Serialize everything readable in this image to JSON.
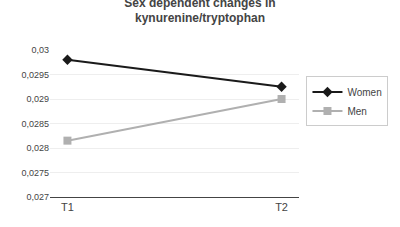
{
  "chart_data": {
    "type": "line",
    "title": "Sex dependent changes in\nkynurenine/tryptophan",
    "categories": [
      "T1",
      "T2"
    ],
    "series": [
      {
        "name": "Women",
        "color": "#1a1a1a",
        "marker": "diamond",
        "values": [
          0.0298,
          0.02925
        ]
      },
      {
        "name": "Men",
        "color": "#b0b0b0",
        "marker": "square",
        "values": [
          0.02815,
          0.029
        ]
      }
    ],
    "ylim": [
      0.027,
      0.03
    ],
    "yticks": [
      {
        "value": 0.027,
        "label": "0,027"
      },
      {
        "value": 0.0275,
        "label": "0,0275"
      },
      {
        "value": 0.028,
        "label": "0,028"
      },
      {
        "value": 0.0285,
        "label": "0,0285"
      },
      {
        "value": 0.029,
        "label": "0,029"
      },
      {
        "value": 0.0295,
        "label": "0,0295"
      },
      {
        "value": 0.03,
        "label": "0,03"
      }
    ],
    "grid": true,
    "legend": "right"
  }
}
